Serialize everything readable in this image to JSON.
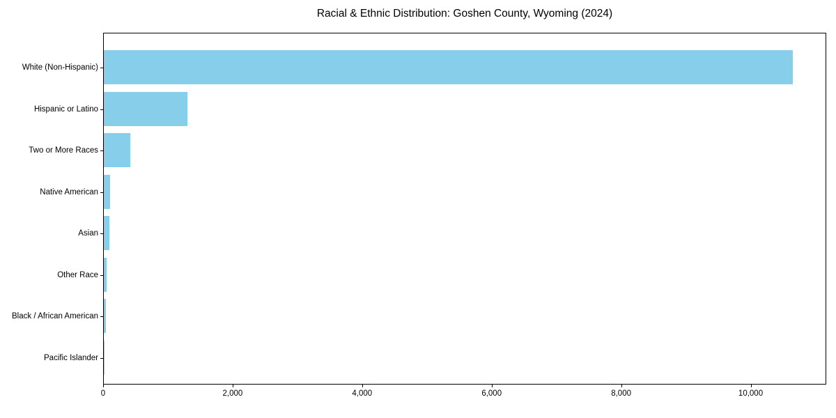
{
  "chart_data": {
    "type": "bar",
    "orientation": "horizontal",
    "title": "Racial & Ethnic Distribution: Goshen County, Wyoming (2024)",
    "categories": [
      "White (Non-Hispanic)",
      "Hispanic or Latino",
      "Two or More Races",
      "Native American",
      "Asian",
      "Other Race",
      "Black / African American",
      "Pacific Islander"
    ],
    "values": [
      10635,
      1290,
      405,
      100,
      90,
      48,
      36,
      8
    ],
    "title_color": "#000000",
    "bar_color": "#87CEEB",
    "axis_color": "#000000",
    "xlabel": "",
    "ylabel": "",
    "xlim": [
      0,
      11167
    ],
    "xticks": [
      0,
      2000,
      4000,
      6000,
      8000,
      10000
    ],
    "xtick_labels": [
      "0",
      "2,000",
      "4,000",
      "6,000",
      "8,000",
      "10,000"
    ],
    "grid": false,
    "legend": "none"
  }
}
